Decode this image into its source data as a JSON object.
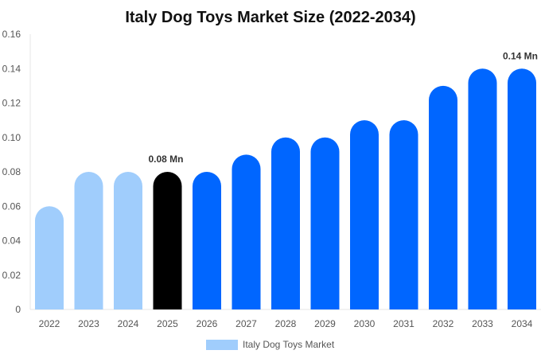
{
  "chart_data": {
    "type": "bar",
    "title": "Italy Dog Toys Market Size (2022-2034)",
    "categories": [
      "2022",
      "2023",
      "2024",
      "2025",
      "2026",
      "2027",
      "2028",
      "2029",
      "2030",
      "2031",
      "2032",
      "2033",
      "2034"
    ],
    "series": [
      {
        "name": "Italy Dog Toys Market",
        "values": [
          0.06,
          0.08,
          0.08,
          0.08,
          0.08,
          0.09,
          0.1,
          0.1,
          0.11,
          0.11,
          0.13,
          0.14,
          0.14
        ]
      }
    ],
    "bar_colors": [
      "#a0cdfc",
      "#a0cdfc",
      "#a0cdfc",
      "#000000",
      "#0066ff",
      "#0066ff",
      "#0066ff",
      "#0066ff",
      "#0066ff",
      "#0066ff",
      "#0066ff",
      "#0066ff",
      "#0066ff"
    ],
    "legend_color": "#a0cdfc",
    "data_labels": {
      "3": "0.08 Mn",
      "12": "0.14 Mn"
    },
    "yticks": [
      "0",
      "0.02",
      "0.04",
      "0.06",
      "0.08",
      "0.10",
      "0.12",
      "0.14",
      "0.16"
    ],
    "ylim": [
      0,
      0.16
    ],
    "xlabel": "",
    "ylabel": "",
    "grid": false,
    "legend_position": "bottom"
  }
}
